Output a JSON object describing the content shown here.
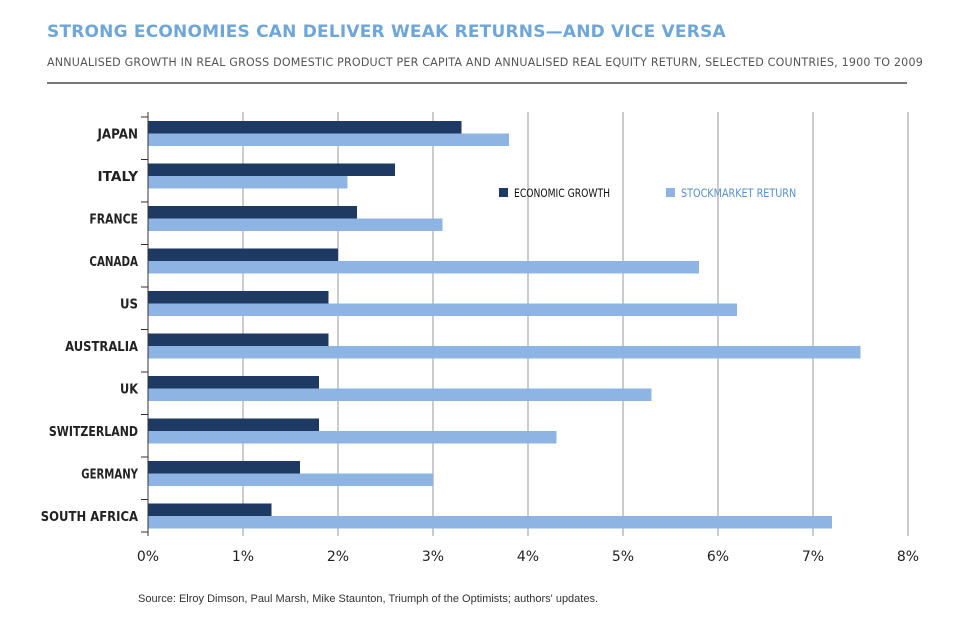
{
  "header": {
    "title": "STRONG ECONOMIES CAN DELIVER WEAK RETURNS—AND VICE VERSA",
    "subtitle": "ANNUALISED GROWTH IN REAL GROSS DOMESTIC PRODUCT PER CAPITA AND ANNUALISED  REAL EQUITY RETURN, SELECTED COUNTRIES, 1900 TO 2009"
  },
  "footer": {
    "source": "Source: Elroy Dimson, Paul Marsh, Mike Staunton, Triumph of the Optimists; authors' updates."
  },
  "colors": {
    "title": "#6fa6d8",
    "economic_growth": "#1e3a63",
    "stockmarket_return": "#8eb4e3",
    "gridline": "#cccccc",
    "axis": "#333333"
  },
  "chart_data": {
    "type": "bar",
    "orientation": "horizontal",
    "title": "STRONG ECONOMIES CAN DELIVER WEAK RETURNS—AND VICE VERSA",
    "subtitle": "ANNUALISED GROWTH IN REAL GROSS DOMESTIC PRODUCT PER CAPITA AND ANNUALISED  REAL EQUITY RETURN, SELECTED COUNTRIES, 1900 TO 2009",
    "categories": [
      "JAPAN",
      "ITALY",
      "FRANCE",
      "CANADA",
      "US",
      "AUSTRALIA",
      "UK",
      "SWITZERLAND",
      "GERMANY",
      "SOUTH AFRICA"
    ],
    "series": [
      {
        "name": "ECONOMIC GROWTH",
        "color": "#1e3a63",
        "values": [
          3.3,
          2.6,
          2.2,
          2.0,
          1.9,
          1.9,
          1.8,
          1.8,
          1.6,
          1.3
        ]
      },
      {
        "name": "STOCKMARKET RETURN",
        "color": "#8eb4e3",
        "values": [
          3.8,
          2.1,
          3.1,
          5.8,
          6.2,
          7.5,
          5.3,
          4.3,
          3.0,
          7.2
        ]
      }
    ],
    "xlim": [
      0,
      8
    ],
    "xticks": [
      0,
      1,
      2,
      3,
      4,
      5,
      6,
      7,
      8
    ],
    "xtick_labels": [
      "0%",
      "1%",
      "2%",
      "3%",
      "4%",
      "5%",
      "6%",
      "7%",
      "8%"
    ],
    "xlabel": "",
    "ylabel": "",
    "grid": true,
    "legend_position": "top-right, inside plot area"
  }
}
